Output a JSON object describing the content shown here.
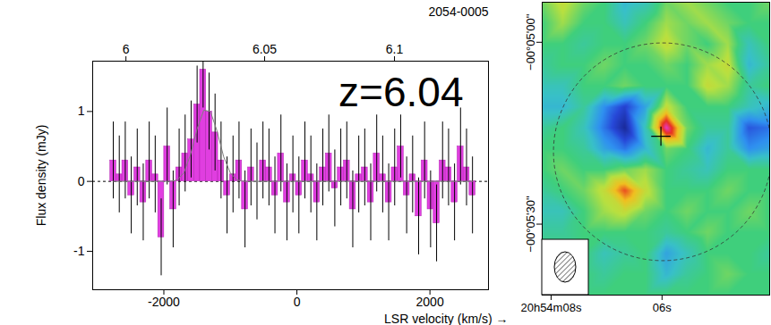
{
  "chart_data": [
    {
      "type": "bar",
      "title": "2054-0005",
      "annotation": "z=6.04",
      "x_label": "LSR velocity (km/s)",
      "y_label": "Flux density (mJy)",
      "x": [
        -2760,
        -2670,
        -2580,
        -2490,
        -2400,
        -2310,
        -2220,
        -2130,
        -2040,
        -1950,
        -1860,
        -1770,
        -1680,
        -1590,
        -1500,
        -1410,
        -1320,
        -1230,
        -1140,
        -1050,
        -960,
        -870,
        -780,
        -690,
        -600,
        -510,
        -420,
        -330,
        -240,
        -150,
        -60,
        30,
        120,
        210,
        300,
        390,
        480,
        570,
        660,
        750,
        840,
        930,
        1020,
        1110,
        1200,
        1290,
        1380,
        1470,
        1560,
        1650,
        1740,
        1830,
        1920,
        2010,
        2100,
        2190,
        2280,
        2370,
        2460,
        2550,
        2640
      ],
      "values": [
        0.3,
        0.1,
        0.3,
        -0.2,
        0.2,
        -0.3,
        0.3,
        0.1,
        -0.8,
        0.5,
        -0.4,
        0.2,
        0.4,
        0.6,
        1.1,
        1.6,
        1.0,
        0.7,
        0.3,
        -0.2,
        0.1,
        0.3,
        -0.4,
        0.2,
        0.0,
        0.3,
        0.2,
        -0.2,
        0.4,
        -0.3,
        0.1,
        -0.2,
        0.3,
        0.1,
        -0.3,
        0.2,
        0.4,
        -0.1,
        0.2,
        0.3,
        -0.4,
        0.1,
        0.2,
        -0.3,
        0.4,
        0.1,
        -0.3,
        0.2,
        0.5,
        -0.2,
        0.1,
        -0.5,
        0.3,
        -0.4,
        -0.6,
        0.3,
        0.2,
        -0.3,
        0.5,
        0.2,
        -0.2
      ],
      "errors": [
        0.55,
        0.55,
        0.55,
        0.55,
        0.55,
        0.55,
        0.55,
        0.55,
        0.55,
        0.55,
        0.55,
        0.55,
        0.55,
        0.55,
        0.55,
        0.55,
        0.55,
        0.55,
        0.55,
        0.55,
        0.55,
        0.55,
        0.55,
        0.55,
        0.55,
        0.55,
        0.55,
        0.55,
        0.55,
        0.55,
        0.55,
        0.55,
        0.55,
        0.55,
        0.55,
        0.55,
        0.55,
        0.55,
        0.55,
        0.55,
        0.55,
        0.55,
        0.55,
        0.55,
        0.55,
        0.55,
        0.55,
        0.55,
        0.45,
        0.55,
        0.55,
        0.55,
        0.55,
        0.55,
        0.55,
        0.55,
        0.55,
        0.55,
        0.55,
        0.55,
        0.55
      ],
      "color": "#e03ee0",
      "fit": {
        "x": [
          -2760,
          -1900,
          -1800,
          -1700,
          -1600,
          -1500,
          -1400,
          -1300,
          -1200,
          -1100,
          -1000,
          -900,
          -800,
          2640
        ],
        "values": [
          0,
          0,
          0.02,
          0.12,
          0.38,
          0.75,
          1.02,
          1.0,
          0.72,
          0.35,
          0.12,
          0.02,
          0,
          0
        ],
        "color": "#808080"
      },
      "xlim": [
        -3070,
        2880
      ],
      "ylim": [
        -1.55,
        1.72
      ],
      "xticks": [
        -2000,
        0,
        2000
      ],
      "yticks": [
        -1,
        0,
        1
      ],
      "x2ticks": [
        {
          "value": -2570,
          "label": "6"
        },
        {
          "value": -485,
          "label": "6.05"
        },
        {
          "value": 1467,
          "label": "6.1"
        }
      ]
    },
    {
      "type": "heatmap",
      "x": [
        8.16,
        7.79,
        7.41,
        7.04,
        6.67,
        6.3,
        5.92,
        5.55,
        5.18,
        4.81,
        4.43,
        4.06
      ],
      "y": [
        -293.4,
        -296.85,
        -300.3,
        -303.75,
        -307.2,
        -310.65,
        -314.1,
        -317.55,
        -321.0,
        -324.45,
        -327.9,
        -331.35,
        -334.8,
        -338.25,
        -341.7
      ],
      "cells": [
        [
          0.1,
          0.3,
          0.1,
          0,
          -0.3,
          -0.2,
          0.1,
          0.2,
          0.1,
          0,
          0,
          0.1
        ],
        [
          0,
          0.2,
          0,
          0,
          -0.2,
          0,
          0.2,
          0.1,
          0.2,
          0.1,
          0,
          0
        ],
        [
          0,
          0,
          -0.1,
          0,
          0,
          0.1,
          0.3,
          0.1,
          0,
          0.2,
          -0.2,
          0
        ],
        [
          -0.1,
          0,
          0,
          0.1,
          0,
          0,
          0.1,
          0,
          0.2,
          0.3,
          -0.3,
          -0.1
        ],
        [
          -0.2,
          -0.2,
          0,
          0,
          0.1,
          0,
          0,
          0,
          0.3,
          0.2,
          -0.1,
          0
        ],
        [
          -0.3,
          -0.3,
          -0.1,
          -0.5,
          -0.8,
          -0.4,
          0.3,
          0,
          0,
          0,
          -0.2,
          -0.3
        ],
        [
          -0.1,
          0,
          -0.2,
          -0.6,
          -1.0,
          -0.2,
          1.0,
          0.1,
          -0.1,
          -0.1,
          -0.7,
          -0.6
        ],
        [
          0,
          0,
          -0.1,
          -0.4,
          -0.6,
          -0.3,
          0.1,
          0,
          -0.3,
          -0.1,
          -0.5,
          -0.4
        ],
        [
          0,
          0.1,
          0,
          0,
          0.1,
          0.2,
          0,
          -0.1,
          -0.2,
          0,
          0,
          0
        ],
        [
          -0.1,
          0,
          0.1,
          0.3,
          0.7,
          0.3,
          0,
          0,
          0,
          0.1,
          0,
          0
        ],
        [
          -0.2,
          -0.2,
          0,
          0.2,
          0.3,
          0.1,
          0,
          0.1,
          0,
          0,
          0.1,
          0
        ],
        [
          -0.1,
          -0.1,
          0,
          0,
          0,
          0,
          -0.1,
          0,
          0.1,
          0,
          0,
          0
        ],
        [
          0,
          0,
          0,
          -0.2,
          -0.1,
          0,
          -0.4,
          -0.2,
          0,
          0,
          0,
          -0.1
        ],
        [
          0,
          0,
          0,
          -0.1,
          0,
          0,
          -0.3,
          -0.1,
          0,
          0.1,
          0,
          0
        ],
        [
          0,
          0,
          0,
          0,
          0,
          0,
          0,
          0,
          0,
          0,
          0,
          0
        ]
      ],
      "clim": [
        -1,
        1
      ],
      "xlim": [
        8.16,
        4.06
      ],
      "ylim": [
        -341.7,
        -293.4
      ],
      "xticks": [
        {
          "value": 8,
          "label": "20h54m08s"
        },
        {
          "value": 6,
          "label": "06s"
        }
      ],
      "yticks": [
        {
          "value": -300,
          "label": "−00°05'00\""
        },
        {
          "value": -330,
          "label": "−00°05'30\""
        }
      ],
      "source": {
        "x": 6.02,
        "y": -315.5
      }
    }
  ]
}
